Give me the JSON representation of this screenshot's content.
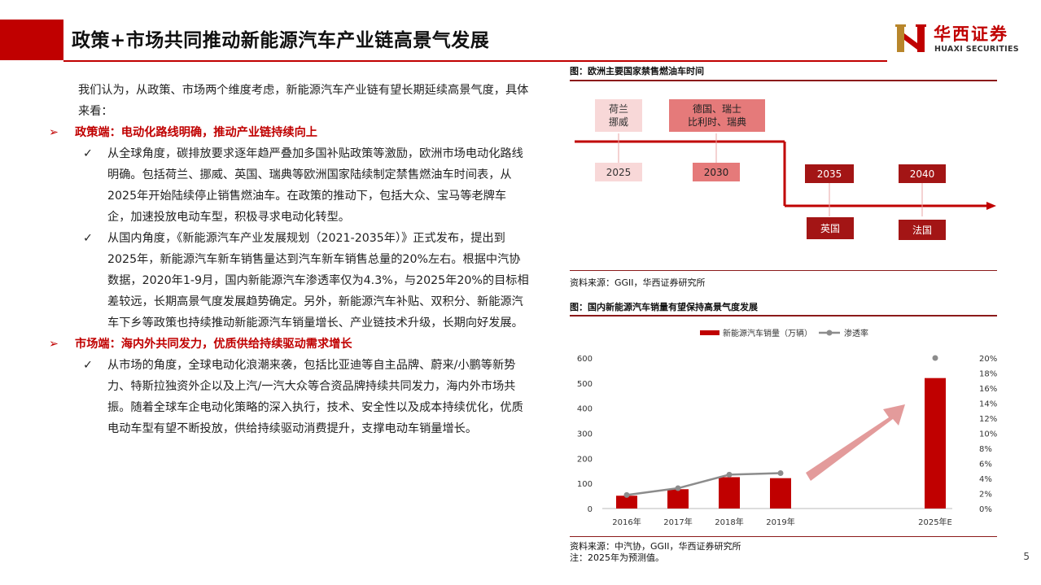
{
  "header": {
    "title": "政策+市场共同推动新能源汽车产业链高景气发展",
    "logo_cn": "华西证券",
    "logo_en": "HUAXI SECURITIES"
  },
  "left": {
    "intro": "我们认为，从政策、市场两个维度考虑，新能源汽车产业链有望长期延续高景气度，具体来看：",
    "policy_heading": "政策端：电动化路线明确，推动产业链持续向上",
    "policy_point1": "从全球角度，碳排放要求逐年趋严叠加多国补贴政策等激励，欧洲市场电动化路线明确。包括荷兰、挪威、英国、瑞典等欧洲国家陆续制定禁售燃油车时间表，从2025年开始陆续停止销售燃油车。在政策的推动下，包括大众、宝马等老牌车企，加速投放电动车型，积极寻求电动化转型。",
    "policy_point2": "从国内角度，《新能源汽车产业发展规划（2021-2035年）》正式发布，提出到2025年，新能源汽车新车销售量达到汽车新车销售总量的20%左右。根据中汽协数据，2020年1-9月，国内新能源汽车渗透率仅为4.3%，与2025年20%的目标相差较远，长期高景气度发展趋势确定。另外，新能源汽车补贴、双积分、新能源汽车下乡等政策也持续推动新能源汽车销量增长、产业链技术升级，长期向好发展。",
    "market_heading": "市场端：海内外共同发力，优质供给持续驱动需求增长",
    "market_point1": "从市场的角度，全球电动化浪潮来袭，包括比亚迪等自主品牌、蔚来/小鹏等新势力、特斯拉独资外企以及上汽/一汽大众等合资品牌持续共同发力，海内外市场共振。随着全球车企电动化策略的深入执行，技术、安全性以及成本持续优化，优质电动车型有望不断投放，供给持续驱动消费提升，支撑电动车销量增长。",
    "bullet_marker": "➢",
    "check_marker": "✓"
  },
  "timeline": {
    "title": "图：欧洲主要国家禁售燃油车时间",
    "countries_2025": "荷兰\n挪威",
    "countries_2030": "德国、瑞士\n比利时、瑞典",
    "year_2025": "2025",
    "year_2030": "2030",
    "year_2035": "2035",
    "year_2040": "2040",
    "country_2035": "英国",
    "country_2040": "法国",
    "source": "资料来源：GGII，华西证券研究所"
  },
  "chart": {
    "title": "图：国内新能源汽车销量有望保持高景气度发展",
    "source": "资料来源：中汽协，GGII，华西证券研究所",
    "note": "注：2025年为预测值。"
  },
  "chart_data": {
    "type": "bar",
    "categories": [
      "2016年",
      "2017年",
      "2018年",
      "2019年",
      "2025年E"
    ],
    "series": [
      {
        "name": "新能源汽车销量（万辆）",
        "type": "bar",
        "axis": "left",
        "values": [
          51,
          77,
          125,
          121,
          520
        ]
      },
      {
        "name": "渗透率",
        "type": "line",
        "axis": "right",
        "values": [
          1.8,
          2.7,
          4.5,
          4.7,
          20
        ]
      }
    ],
    "ylim_left": [
      0,
      600
    ],
    "yticks_left": [
      "0",
      "100",
      "200",
      "300",
      "400",
      "500",
      "600"
    ],
    "ylim_right": [
      0,
      20
    ],
    "yticks_right": [
      "0%",
      "2%",
      "4%",
      "6%",
      "8%",
      "10%",
      "12%",
      "14%",
      "16%",
      "18%",
      "20%"
    ],
    "legend_position": "top",
    "colors": {
      "bar": "#c00000",
      "line": "#8c8c8c",
      "arrow": "#e09090"
    }
  },
  "page": {
    "number": "5"
  },
  "colors": {
    "accent": "#c00000",
    "dark_red": "#a31515",
    "pink": "#f8d8d8",
    "mid_red": "#e57a7a"
  }
}
